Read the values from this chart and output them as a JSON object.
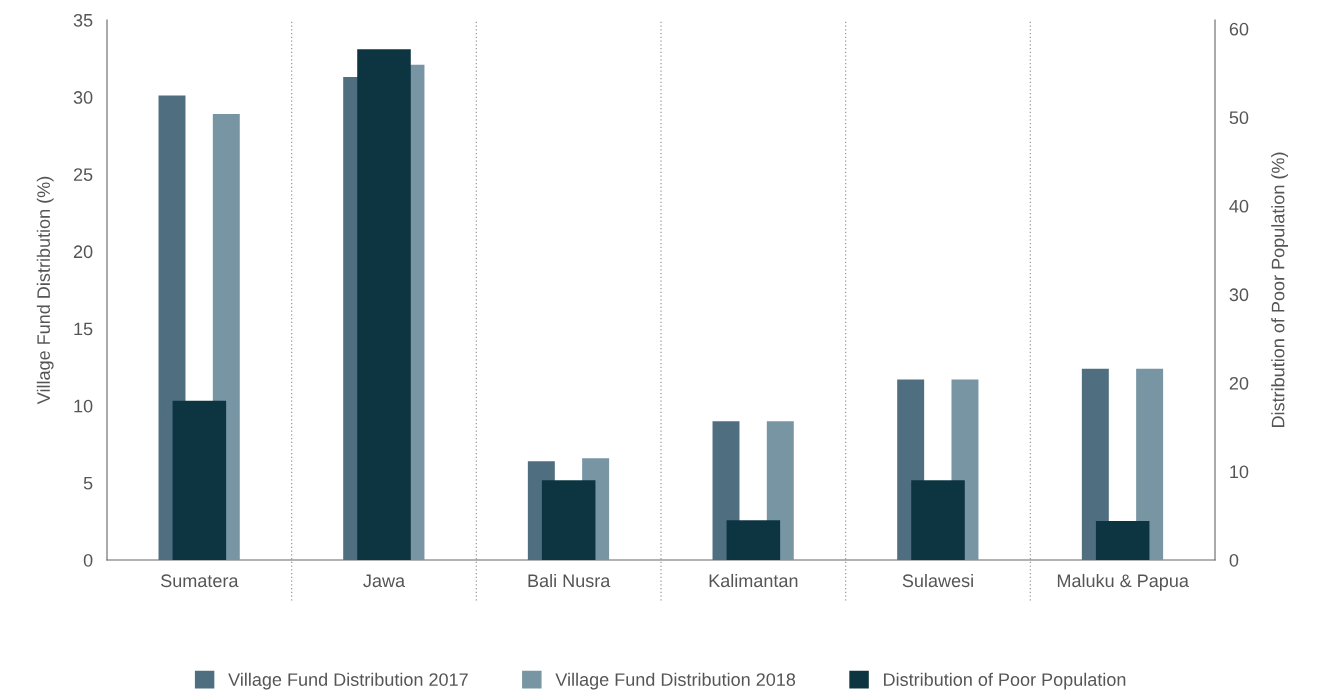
{
  "chart_data": {
    "type": "bar",
    "categories": [
      "Sumatera",
      "Jawa",
      "Bali Nusra",
      "Kalimantan",
      "Sulawesi",
      "Maluku & Papua"
    ],
    "ylabel": "Village Fund Distribution (%)",
    "y2label": "Distribution of Poor Population (%)",
    "ylim": [
      0,
      35
    ],
    "yticks": [
      0,
      5,
      10,
      15,
      20,
      25,
      30,
      35
    ],
    "y2lim": [
      0,
      61
    ],
    "y2ticks": [
      0,
      10,
      20,
      30,
      40,
      50,
      60
    ],
    "grid": "x",
    "legend": "bottom",
    "series": [
      {
        "name": "Village Fund Distribution 2017",
        "color": "#4f6f80",
        "values": [
          30.1,
          31.3,
          6.4,
          9.0,
          11.7,
          12.4
        ]
      },
      {
        "name": "Village Fund Distribution 2018",
        "color": "#7795a3",
        "values": [
          28.9,
          32.1,
          6.6,
          9.0,
          11.7,
          12.4
        ]
      },
      {
        "name": "Distribution of Poor Population",
        "color": "#0d3441",
        "axis": "y2",
        "values": [
          18.0,
          57.7,
          9.0,
          4.5,
          9.0,
          4.4
        ]
      }
    ]
  }
}
